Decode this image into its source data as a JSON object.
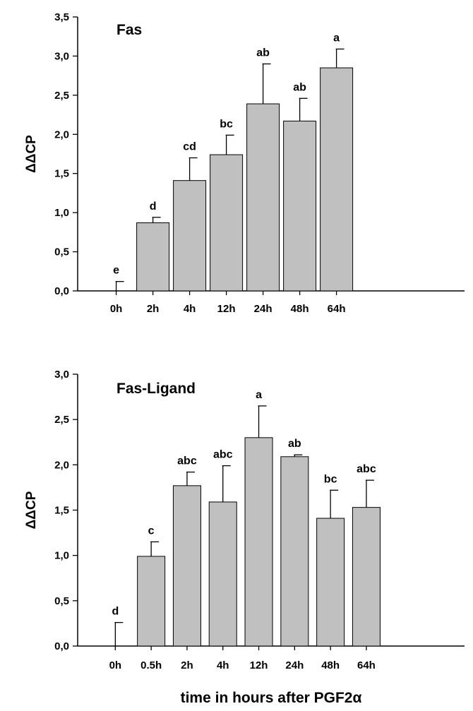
{
  "chart_data": [
    {
      "type": "bar",
      "title": "Fas",
      "ylabel": "ΔΔCP",
      "xlabel": "",
      "ylim": [
        0,
        3.5
      ],
      "yticks": [
        "0,0",
        "0,5",
        "1,0",
        "1,5",
        "2,0",
        "2,5",
        "3,0",
        "3,5"
      ],
      "categories": [
        "0h",
        "2h",
        "4h",
        "12h",
        "24h",
        "48h",
        "64h"
      ],
      "values": [
        0.0,
        0.87,
        1.41,
        1.74,
        2.39,
        2.17,
        2.85
      ],
      "errors": [
        0.12,
        0.07,
        0.29,
        0.25,
        0.51,
        0.29,
        0.24
      ],
      "significance": [
        "e",
        "d",
        "cd",
        "bc",
        "ab",
        "ab",
        "a"
      ],
      "grid": false,
      "legend": "none"
    },
    {
      "type": "bar",
      "title": "Fas-Ligand",
      "ylabel": "ΔΔCP",
      "xlabel": "time in hours after PGF2α",
      "ylim": [
        0,
        3.0
      ],
      "yticks": [
        "0,0",
        "0,5",
        "1,0",
        "1,5",
        "2,0",
        "2,5",
        "3,0"
      ],
      "categories": [
        "0h",
        "0.5h",
        "2h",
        "4h",
        "12h",
        "24h",
        "48h",
        "64h"
      ],
      "values": [
        0.0,
        0.99,
        1.77,
        1.59,
        2.3,
        2.09,
        1.41,
        1.53
      ],
      "errors": [
        0.26,
        0.16,
        0.15,
        0.4,
        0.35,
        0.02,
        0.31,
        0.3
      ],
      "significance": [
        "d",
        "c",
        "abc",
        "abc",
        "a",
        "ab",
        "bc",
        "abc"
      ],
      "grid": false,
      "legend": "none"
    }
  ]
}
